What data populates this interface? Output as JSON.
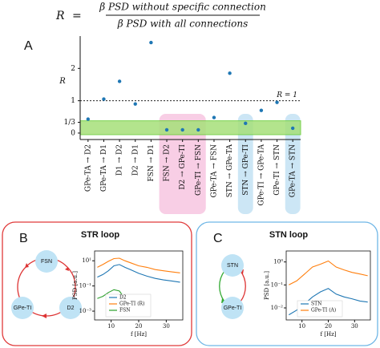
{
  "formula": {
    "lhs": "R",
    "equals": "=",
    "numerator": "β PSD without specific connection",
    "denominator": "β PSD with all connections"
  },
  "diagrams": [
    {
      "panel": "B",
      "title": "STR loop",
      "title_color": "#e03a3a",
      "border_color": "#e03a3a",
      "nodes": [
        "FSN",
        "GPe-TI",
        "D2"
      ]
    },
    {
      "panel": "C",
      "title": "STN loop",
      "title_color": "#4aa3e0",
      "border_color": "#6fb6e6",
      "nodes": [
        "STN",
        "GPe-TI"
      ]
    }
  ],
  "chart_data": [
    {
      "type": "scatter",
      "panel": "A",
      "y_label": "R",
      "categories": [
        "GPe-TA → D2",
        "GPe-TA → D1",
        "D1 → D2",
        "D2 → D1",
        "FSN → D1",
        "FSN → D2",
        "D2 → GPe-TI",
        "GPe-TI → FSN",
        "GPe-TA → FSN",
        "STN → GPe-TA",
        "STN → GPe-TI",
        "GPe-TI → GPe-TA",
        "GPe-TI → STN",
        "GPe-TA → STN"
      ],
      "values": [
        0.43,
        1.05,
        1.6,
        0.9,
        2.8,
        0.1,
        0.1,
        0.1,
        0.48,
        1.85,
        0.3,
        0.7,
        0.95,
        0.15
      ],
      "color": "#1f77b4",
      "ylim": [
        -0.2,
        3.0
      ],
      "yticks": [
        0,
        {
          "value": 0.333,
          "label": "1/3"
        },
        1,
        2
      ],
      "hline": {
        "value": 1,
        "label": "R = 1"
      },
      "band": {
        "range": [
          -0.05,
          0.38
        ],
        "color": "#a6e07a"
      },
      "highlights": [
        {
          "start": 5,
          "end": 7,
          "color": "#f6c2df"
        },
        {
          "start": 10,
          "end": 10,
          "color": "#bfe0f2"
        },
        {
          "start": 13,
          "end": 13,
          "color": "#bfe0f2"
        }
      ]
    },
    {
      "type": "line",
      "panel": "B",
      "x_label": "f [Hz]",
      "y_label": "PSD [a.u.]",
      "ylog": true,
      "x": [
        5,
        7,
        9,
        11,
        13,
        15,
        17,
        20,
        23,
        26,
        29,
        32,
        35
      ],
      "series": [
        {
          "name": "D2",
          "color": "#1f77b4",
          "values": [
            0.5,
            0.8,
            1.6,
            4,
            5,
            3,
            2,
            1,
            0.6,
            0.4,
            0.3,
            0.25,
            0.2
          ]
        },
        {
          "name": "GPe-TI (R)",
          "color": "#ff7f0e",
          "values": [
            3,
            5,
            9,
            15,
            16,
            10,
            7,
            4,
            3,
            2,
            1.6,
            1.3,
            1.1
          ]
        },
        {
          "name": "FSN",
          "color": "#2ca02c",
          "values": [
            0.01,
            0.015,
            0.03,
            0.05,
            0.04,
            0.01,
            0.004,
            0.002,
            0.001,
            null,
            null,
            null,
            null
          ]
        }
      ],
      "xlim": [
        4,
        36
      ],
      "ylim": [
        0.0002,
        60
      ],
      "xticks": [
        10,
        20,
        30
      ],
      "yticks": [
        {
          "value": 10,
          "label": "10¹"
        },
        {
          "value": 0.1,
          "label": "10⁻¹"
        },
        {
          "value": 0.001,
          "label": "10⁻³"
        }
      ]
    },
    {
      "type": "line",
      "panel": "C",
      "x_label": "f [Hz]",
      "y_label": "PSD [a.u.]",
      "ylog": true,
      "x": [
        5,
        8,
        11,
        14,
        17,
        20,
        23,
        26,
        29,
        32,
        35
      ],
      "series": [
        {
          "name": "STN",
          "color": "#1f77b4",
          "values": [
            0.005,
            0.008,
            0.015,
            0.03,
            0.05,
            0.07,
            0.04,
            0.03,
            0.025,
            0.02,
            0.018
          ]
        },
        {
          "name": "GPe-TI (A)",
          "color": "#ff7f0e",
          "values": [
            0.1,
            0.15,
            0.3,
            0.6,
            0.8,
            1.1,
            0.6,
            0.45,
            0.35,
            0.3,
            0.25
          ]
        }
      ],
      "xlim": [
        4,
        36
      ],
      "ylim": [
        0.003,
        3
      ],
      "xticks": [
        10,
        20,
        30
      ],
      "yticks": [
        {
          "value": 1,
          "label": "10⁰"
        },
        {
          "value": 0.1,
          "label": "10⁻¹"
        },
        {
          "value": 0.01,
          "label": "10⁻²"
        }
      ]
    }
  ]
}
